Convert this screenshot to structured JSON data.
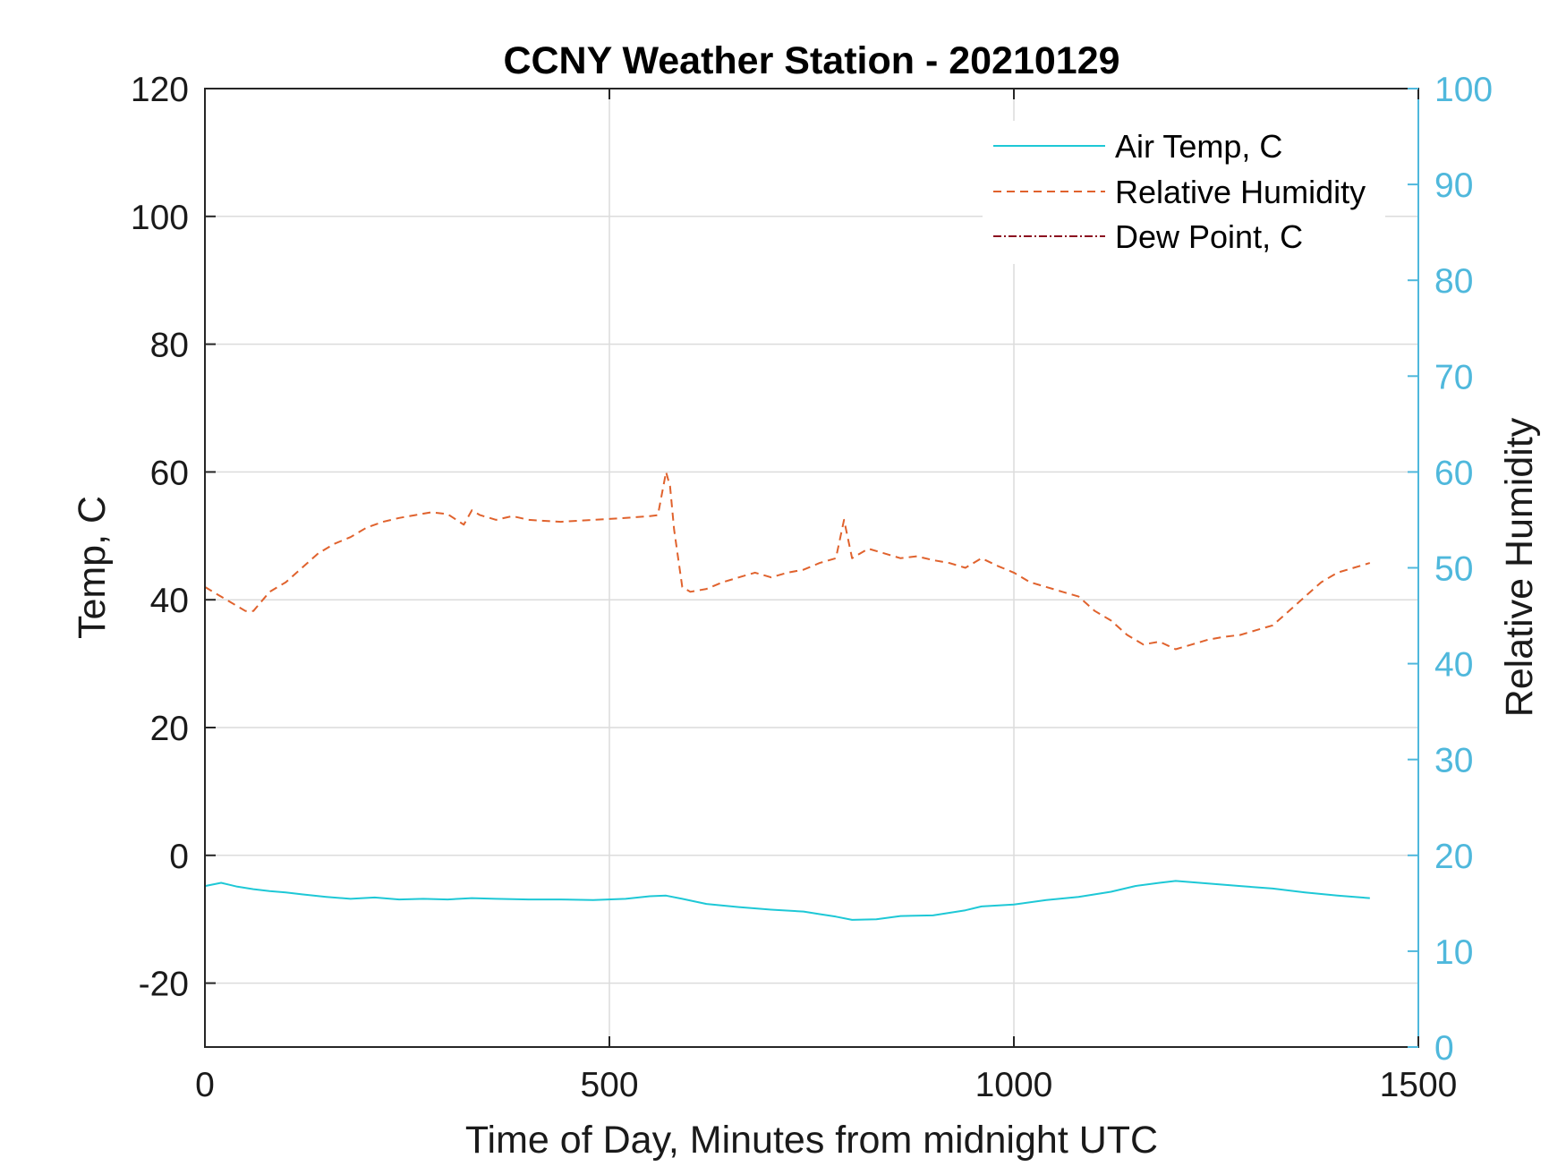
{
  "chart_data": {
    "type": "line",
    "title": "CCNY Weather Station - 20210129",
    "xlabel": "Time of Day, Minutes from midnight UTC",
    "ylabel": "Temp, C",
    "ylabel_right": "Relative Humidity",
    "xlim": [
      0,
      1500
    ],
    "ylim": [
      -30,
      120
    ],
    "ylim_right": [
      0,
      100
    ],
    "xticks": [
      0,
      500,
      1000,
      1500
    ],
    "yticks": [
      -20,
      0,
      20,
      40,
      60,
      80,
      100,
      120
    ],
    "yticks_right": [
      0,
      10,
      20,
      30,
      40,
      50,
      60,
      70,
      80,
      90,
      100
    ],
    "xtick_labels": [
      "0",
      "500",
      "1000",
      "1500"
    ],
    "ytick_labels": [
      "-20",
      "0",
      "20",
      "40",
      "60",
      "80",
      "100",
      "120"
    ],
    "ytick_labels_right": [
      "0",
      "10",
      "20",
      "30",
      "40",
      "50",
      "60",
      "70",
      "80",
      "90",
      "100"
    ],
    "grid": true,
    "legend_position": "top-right",
    "colors": {
      "air_temp": "#1ec8d6",
      "relative_humidity": "#e0622d",
      "dew_point": "#8b1020",
      "right_axis": "#4fb8dc",
      "grid": "#dcdcdc"
    },
    "series": [
      {
        "name": "Air Temp, C",
        "axis": "left",
        "style": "solid",
        "x": [
          0,
          20,
          40,
          60,
          80,
          100,
          120,
          150,
          180,
          210,
          240,
          270,
          300,
          330,
          360,
          400,
          440,
          480,
          520,
          550,
          570,
          590,
          620,
          660,
          700,
          740,
          760,
          780,
          800,
          830,
          860,
          900,
          940,
          960,
          1000,
          1040,
          1080,
          1120,
          1150,
          1180,
          1200,
          1240,
          1280,
          1320,
          1360,
          1400,
          1430,
          1440
        ],
        "values": [
          -4.8,
          -4.3,
          -4.9,
          -5.3,
          -5.6,
          -5.8,
          -6.1,
          -6.5,
          -6.8,
          -6.6,
          -6.9,
          -6.8,
          -6.9,
          -6.7,
          -6.8,
          -6.9,
          -6.9,
          -7.0,
          -6.8,
          -6.4,
          -6.3,
          -6.8,
          -7.6,
          -8.1,
          -8.5,
          -8.8,
          -9.2,
          -9.6,
          -10.1,
          -10.0,
          -9.5,
          -9.4,
          -8.6,
          -8.0,
          -7.7,
          -7.0,
          -6.5,
          -5.7,
          -4.8,
          -4.3,
          -4.0,
          -4.4,
          -4.8,
          -5.2,
          -5.8,
          -6.3,
          -6.6,
          -6.7
        ]
      },
      {
        "name": "Relative Humidity",
        "axis": "right",
        "style": "dashed",
        "x": [
          0,
          10,
          30,
          50,
          60,
          80,
          100,
          120,
          140,
          160,
          180,
          200,
          220,
          240,
          260,
          280,
          300,
          320,
          330,
          340,
          360,
          380,
          400,
          440,
          480,
          520,
          550,
          560,
          570,
          575,
          580,
          590,
          600,
          620,
          640,
          660,
          680,
          700,
          720,
          740,
          760,
          780,
          790,
          800,
          820,
          840,
          860,
          880,
          900,
          920,
          940,
          960,
          980,
          1000,
          1020,
          1040,
          1060,
          1080,
          1100,
          1120,
          1140,
          1160,
          1180,
          1200,
          1220,
          1240,
          1260,
          1280,
          1300,
          1320,
          1340,
          1360,
          1380,
          1400,
          1420,
          1440
        ],
        "values": [
          48.0,
          47.5,
          46.5,
          45.5,
          45.5,
          47.5,
          48.5,
          50.0,
          51.5,
          52.5,
          53.2,
          54.2,
          54.8,
          55.2,
          55.5,
          55.8,
          55.6,
          54.5,
          56.0,
          55.5,
          55.0,
          55.4,
          55.0,
          54.8,
          55.0,
          55.2,
          55.4,
          55.5,
          60.0,
          58.5,
          54.0,
          48.0,
          47.5,
          47.8,
          48.5,
          49.0,
          49.5,
          49.0,
          49.5,
          49.8,
          50.5,
          51.0,
          55.0,
          51.0,
          52.0,
          51.5,
          51.0,
          51.2,
          50.8,
          50.5,
          50.0,
          51.0,
          50.2,
          49.5,
          48.5,
          48.0,
          47.5,
          47.0,
          45.5,
          44.5,
          43.0,
          42.0,
          42.3,
          41.5,
          42.0,
          42.5,
          42.8,
          43.0,
          43.5,
          44.0,
          45.5,
          47.0,
          48.5,
          49.5,
          50.0,
          50.5
        ]
      },
      {
        "name": "Dew Point, C",
        "axis": "left",
        "style": "dash-dot",
        "x": [],
        "values": []
      }
    ]
  }
}
